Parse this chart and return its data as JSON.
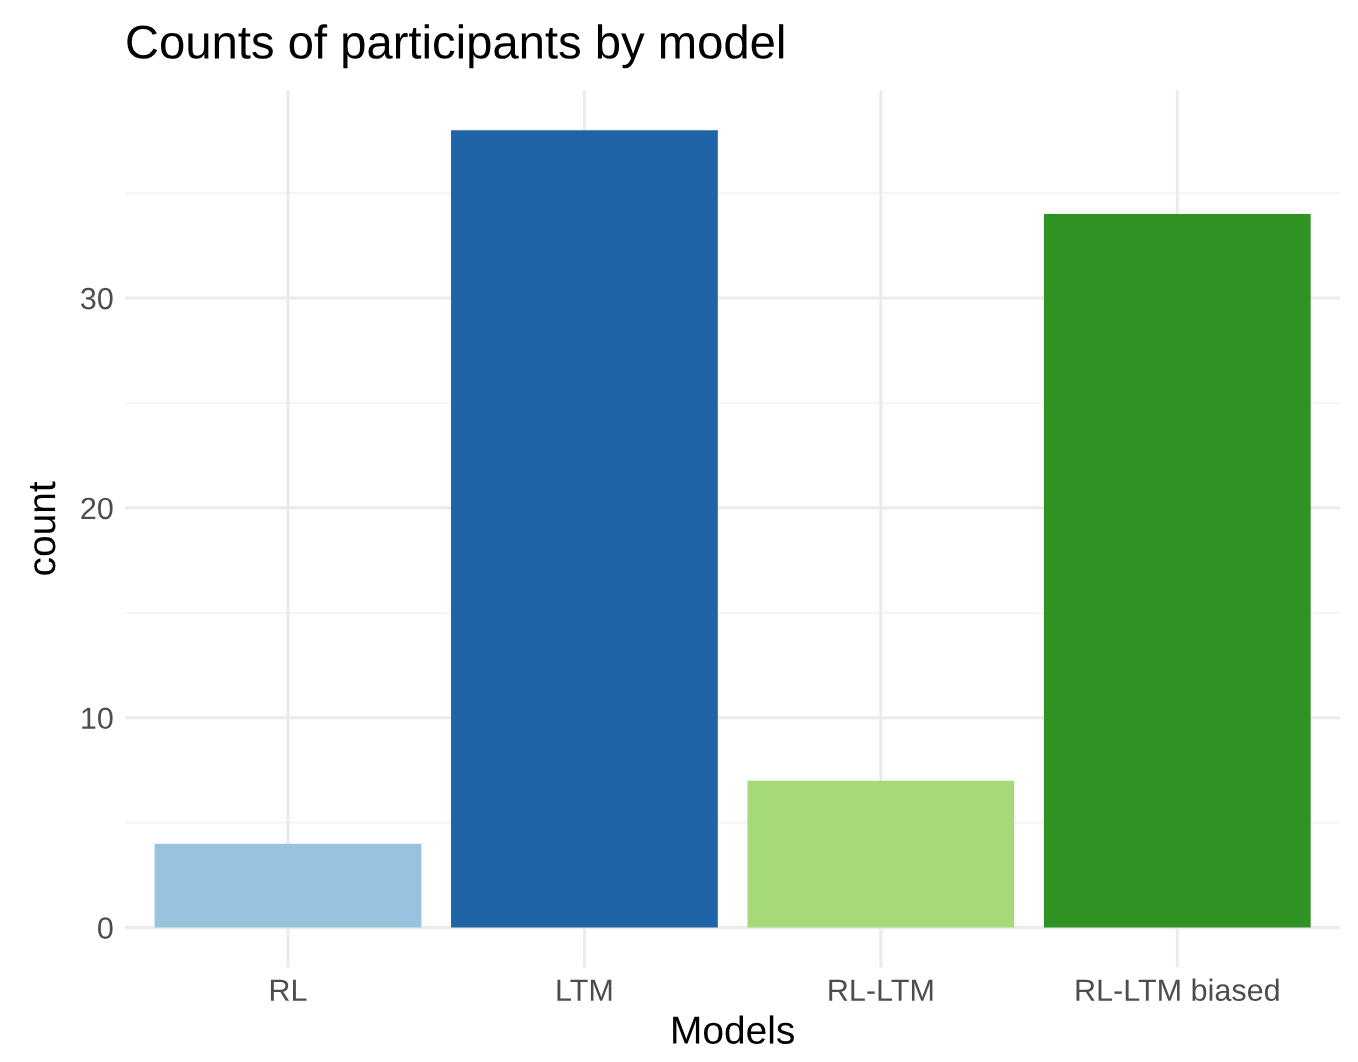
{
  "chart_data": {
    "type": "bar",
    "title": "Counts of participants by model",
    "xlabel": "Models",
    "ylabel": "count",
    "categories": [
      "RL",
      "LTM",
      "RL-LTM",
      "RL-LTM biased"
    ],
    "values": [
      4,
      38,
      7,
      34
    ],
    "colors": [
      "#97c3de",
      "#1f64a6",
      "#a6d977",
      "#2e9322"
    ],
    "ylim": [
      -1.9,
      39.9
    ],
    "yticks": [
      0,
      10,
      20,
      30
    ],
    "grid": true,
    "legend": false
  }
}
